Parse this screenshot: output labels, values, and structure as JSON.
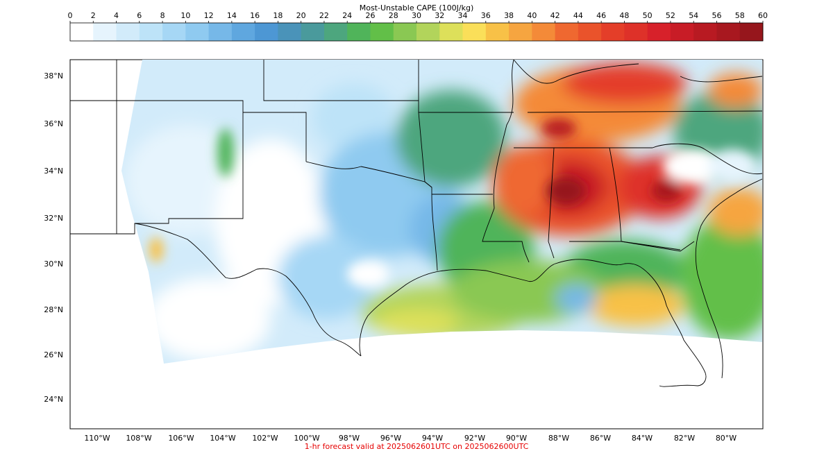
{
  "figure": {
    "colorbar_title": "Most-Unstable CAPE (100J/kg)",
    "colorbar_ticks": [
      "0",
      "2",
      "4",
      "6",
      "8",
      "10",
      "12",
      "14",
      "16",
      "18",
      "20",
      "22",
      "24",
      "26",
      "28",
      "30",
      "32",
      "34",
      "36",
      "38",
      "40",
      "42",
      "44",
      "46",
      "48",
      "50",
      "52",
      "54",
      "56",
      "58",
      "60"
    ],
    "colorbar_colors": [
      "#ffffff",
      "#e6f4fd",
      "#d2ebfa",
      "#bde3f8",
      "#a6d7f5",
      "#8fcaf0",
      "#76b8e8",
      "#5fa7df",
      "#4d97d4",
      "#4a93b9",
      "#4a9a9c",
      "#4da67e",
      "#50b45a",
      "#62bf48",
      "#8ac853",
      "#b2d45b",
      "#dde05a",
      "#fadf59",
      "#f8c147",
      "#f6a540",
      "#f48a38",
      "#ef6830",
      "#ea532b",
      "#e43e29",
      "#de3129",
      "#d7212a",
      "#c81c26",
      "#b81a22",
      "#a8181f",
      "#96161c"
    ],
    "lat_labels": [
      "38°N",
      "36°N",
      "34°N",
      "32°N",
      "30°N",
      "28°N",
      "26°N",
      "24°N"
    ],
    "lon_labels": [
      "110°W",
      "108°W",
      "106°W",
      "104°W",
      "102°W",
      "100°W",
      "98°W",
      "96°W",
      "94°W",
      "92°W",
      "90°W",
      "88°W",
      "86°W",
      "84°W",
      "82°W",
      "80°W"
    ],
    "footer": "1-hr forecast valid at 2025062601UTC on 2025062600UTC"
  }
}
